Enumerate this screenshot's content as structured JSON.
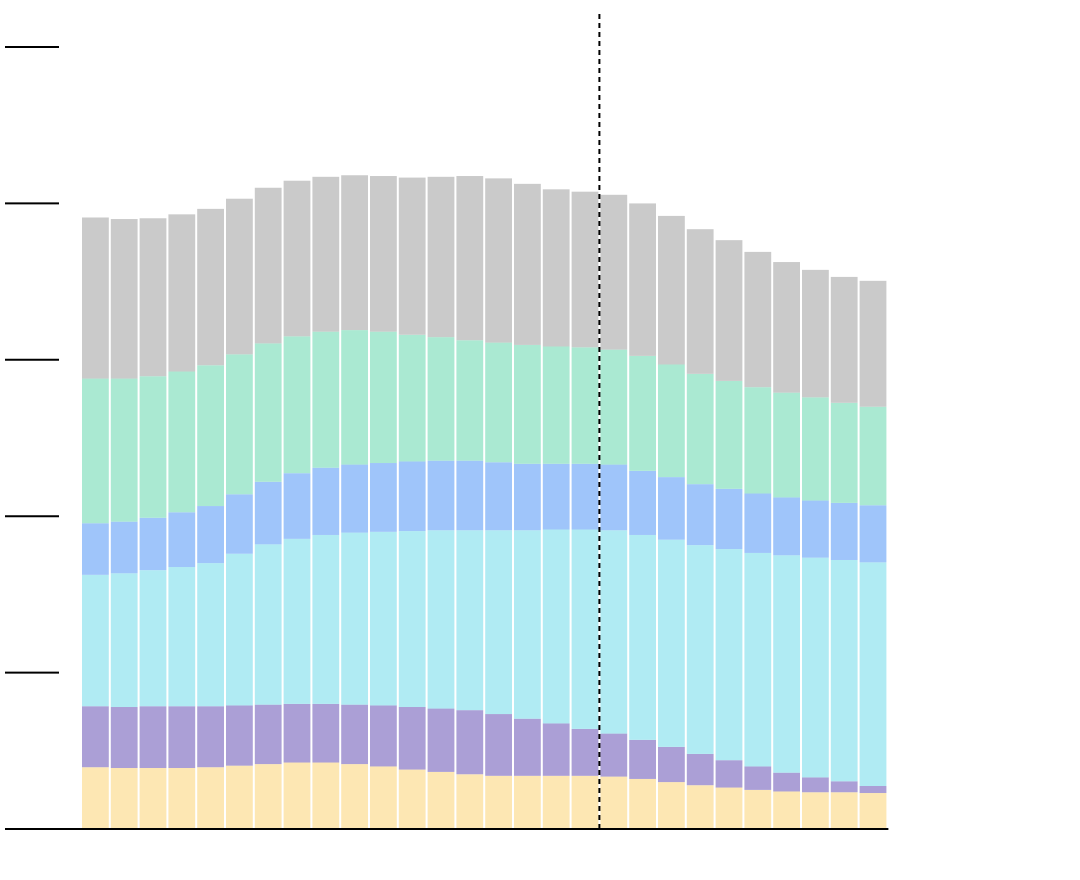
{
  "chart_data": {
    "type": "bar",
    "stacked": true,
    "bar_count": 28,
    "ylim": [
      0,
      100
    ],
    "y_ticks": [
      0,
      20,
      40,
      60,
      80,
      100
    ],
    "tick_labels_shown": false,
    "grid": false,
    "legend": "none",
    "reference_line": {
      "bar_index": 18,
      "style": "dashed"
    },
    "series": [
      {
        "color": "#fde7b3",
        "values": [
          7.9,
          7.8,
          7.8,
          7.8,
          7.9,
          8.1,
          8.3,
          8.5,
          8.5,
          8.3,
          8.0,
          7.6,
          7.3,
          7.0,
          6.8,
          6.8,
          6.8,
          6.8,
          6.7,
          6.4,
          6.0,
          5.6,
          5.3,
          5.0,
          4.8,
          4.7,
          4.7,
          4.6
        ]
      },
      {
        "color": "#ab9fd6",
        "values": [
          7.8,
          7.8,
          7.9,
          7.9,
          7.8,
          7.7,
          7.6,
          7.5,
          7.5,
          7.6,
          7.8,
          8.0,
          8.1,
          8.2,
          7.9,
          7.3,
          6.7,
          6.0,
          5.5,
          5.0,
          4.5,
          4.0,
          3.5,
          3.0,
          2.4,
          1.9,
          1.4,
          0.9
        ]
      },
      {
        "color": "#b0ebf3",
        "values": [
          16.8,
          17.1,
          17.4,
          17.8,
          18.3,
          19.4,
          20.5,
          21.1,
          21.6,
          22.0,
          22.2,
          22.5,
          22.8,
          23.0,
          23.5,
          24.1,
          24.8,
          25.5,
          26.0,
          26.2,
          26.5,
          26.7,
          27.0,
          27.3,
          27.8,
          28.1,
          28.3,
          28.6
        ]
      },
      {
        "color": "#9fc5fa",
        "values": [
          6.6,
          6.6,
          6.7,
          7.0,
          7.3,
          7.6,
          8.0,
          8.4,
          8.6,
          8.7,
          8.8,
          8.9,
          8.9,
          8.9,
          8.7,
          8.5,
          8.4,
          8.4,
          8.4,
          8.2,
          8.0,
          7.8,
          7.7,
          7.6,
          7.4,
          7.3,
          7.3,
          7.3
        ]
      },
      {
        "color": "#aae9d2",
        "values": [
          18.5,
          18.3,
          18.1,
          18.0,
          18.0,
          17.9,
          17.7,
          17.5,
          17.4,
          17.2,
          16.8,
          16.2,
          15.8,
          15.4,
          15.3,
          15.2,
          15.0,
          14.9,
          14.7,
          14.7,
          14.4,
          14.1,
          13.8,
          13.6,
          13.4,
          13.2,
          12.8,
          12.6
        ]
      },
      {
        "color": "#cacaca",
        "values": [
          20.6,
          20.4,
          20.2,
          20.1,
          20.0,
          19.9,
          19.9,
          19.9,
          19.8,
          19.8,
          19.9,
          20.1,
          20.5,
          21.0,
          21.0,
          20.6,
          20.1,
          19.9,
          19.8,
          19.5,
          19.0,
          18.5,
          18.0,
          17.3,
          16.7,
          16.3,
          16.1,
          16.1
        ]
      }
    ]
  }
}
